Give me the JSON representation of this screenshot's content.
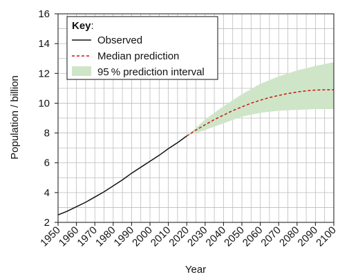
{
  "chart_data": {
    "type": "line",
    "title": "",
    "xlabel": "Year",
    "ylabel": "Population / billion",
    "xlim": [
      1950,
      2100
    ],
    "ylim": [
      2,
      16
    ],
    "xticks": [
      1950,
      1960,
      1970,
      1980,
      1990,
      2000,
      2010,
      2020,
      2030,
      2040,
      2050,
      2060,
      2070,
      2080,
      2090,
      2100
    ],
    "yticks": [
      2,
      4,
      6,
      8,
      10,
      12,
      14,
      16
    ],
    "grid": true,
    "legend": {
      "title": "Key",
      "title_suffix": ":",
      "placement": "top-left",
      "entries": {
        "observed": "Observed",
        "median": "Median prediction",
        "interval": "95 % prediction interval"
      }
    },
    "series": [
      {
        "name": "Observed",
        "style": "solid",
        "color": "#111111",
        "x": [
          1950,
          1955,
          1960,
          1965,
          1970,
          1975,
          1980,
          1985,
          1990,
          1995,
          2000,
          2005,
          2010,
          2015,
          2020
        ],
        "y": [
          2.5,
          2.75,
          3.05,
          3.35,
          3.7,
          4.05,
          4.45,
          4.85,
          5.3,
          5.7,
          6.1,
          6.5,
          6.95,
          7.35,
          7.8
        ]
      },
      {
        "name": "Median prediction",
        "style": "dashed",
        "color": "#cc1111",
        "x": [
          2020,
          2025,
          2030,
          2035,
          2040,
          2045,
          2050,
          2055,
          2060,
          2065,
          2070,
          2075,
          2080,
          2085,
          2090,
          2095,
          2100
        ],
        "y": [
          7.8,
          8.2,
          8.55,
          8.9,
          9.2,
          9.5,
          9.75,
          10.0,
          10.2,
          10.38,
          10.52,
          10.65,
          10.75,
          10.83,
          10.88,
          10.9,
          10.9
        ]
      }
    ],
    "band": {
      "name": "95 % prediction interval",
      "color": "#cfe5c8",
      "x": [
        2020,
        2030,
        2040,
        2050,
        2060,
        2070,
        2080,
        2090,
        2100
      ],
      "lower": [
        7.8,
        8.2,
        8.65,
        9.1,
        9.35,
        9.5,
        9.55,
        9.6,
        9.6
      ],
      "upper": [
        7.8,
        8.9,
        9.8,
        10.6,
        11.3,
        11.8,
        12.2,
        12.5,
        12.75
      ]
    }
  }
}
